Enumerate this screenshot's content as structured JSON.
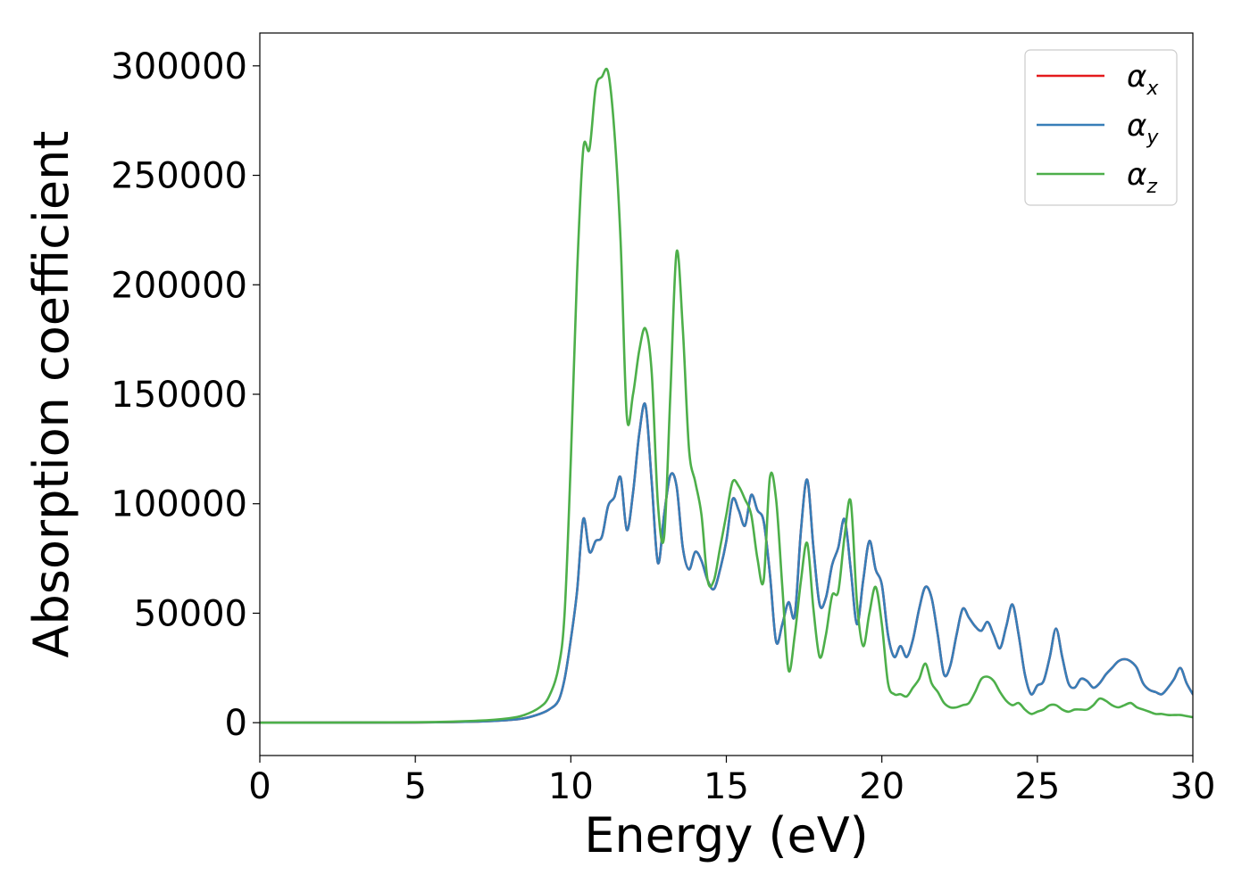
{
  "chart_data": {
    "type": "line",
    "title": "",
    "xlabel": "Energy (eV)",
    "ylabel": "Absorption coefficient",
    "xlim": [
      0,
      30
    ],
    "ylim": [
      -15000,
      315000
    ],
    "xticks": [
      "0",
      "5",
      "10",
      "15",
      "20",
      "25",
      "30"
    ],
    "yticks": [
      "0",
      "50000",
      "100000",
      "150000",
      "200000",
      "250000",
      "300000"
    ],
    "grid": false,
    "legend_position": "top-right",
    "series": [
      {
        "name": "α_x",
        "symbol": "α",
        "subscript": "x",
        "color": "#e41a1c",
        "x": [
          0,
          5,
          7,
          8,
          8.5,
          9,
          9.3,
          9.6,
          9.8,
          10,
          10.2,
          10.4,
          10.6,
          10.8,
          11,
          11.2,
          11.4,
          11.6,
          11.8,
          12,
          12.2,
          12.4,
          12.6,
          12.8,
          13,
          13.2,
          13.4,
          13.6,
          13.8,
          14,
          14.2,
          14.4,
          14.6,
          14.8,
          15,
          15.2,
          15.4,
          15.6,
          15.8,
          16,
          16.2,
          16.4,
          16.6,
          16.8,
          17,
          17.2,
          17.4,
          17.6,
          17.8,
          18,
          18.2,
          18.4,
          18.6,
          18.8,
          19,
          19.2,
          19.4,
          19.6,
          19.8,
          20,
          20.2,
          20.4,
          20.6,
          20.8,
          21,
          21.2,
          21.4,
          21.6,
          21.8,
          22,
          22.2,
          22.4,
          22.6,
          22.8,
          23,
          23.2,
          23.4,
          23.6,
          23.8,
          24,
          24.2,
          24.4,
          24.6,
          24.8,
          25,
          25.2,
          25.4,
          25.6,
          25.8,
          26,
          26.2,
          26.4,
          26.6,
          26.8,
          27,
          27.2,
          27.4,
          27.6,
          27.8,
          28,
          28.2,
          28.4,
          28.6,
          28.8,
          29,
          29.2,
          29.4,
          29.6,
          29.8,
          30
        ],
        "values": [
          0,
          100,
          500,
          1200,
          2000,
          4000,
          6000,
          10000,
          20000,
          38000,
          60000,
          93000,
          78000,
          83000,
          85000,
          99000,
          103000,
          112000,
          88000,
          105000,
          132000,
          145000,
          110000,
          73000,
          95000,
          113000,
          108000,
          80000,
          70000,
          78000,
          74000,
          65000,
          61000,
          70000,
          83000,
          102000,
          97000,
          90000,
          104000,
          97000,
          92000,
          68000,
          37000,
          45000,
          55000,
          49000,
          88000,
          111000,
          80000,
          54000,
          57000,
          72000,
          80000,
          93000,
          70000,
          45000,
          65000,
          83000,
          70000,
          63000,
          40000,
          30000,
          35000,
          30000,
          38000,
          52000,
          62000,
          57000,
          40000,
          22000,
          26000,
          40000,
          52000,
          48000,
          44000,
          42000,
          46000,
          40000,
          34000,
          44000,
          54000,
          40000,
          22000,
          13000,
          17000,
          19000,
          30000,
          43000,
          30000,
          18000,
          16000,
          20000,
          19000,
          16000,
          18000,
          22000,
          25000,
          28000,
          29000,
          28000,
          25000,
          18000,
          15000,
          14000,
          13000,
          16000,
          20000,
          25000,
          18000,
          13000
        ]
      },
      {
        "name": "α_y",
        "symbol": "α",
        "subscript": "y",
        "color": "#377eb8",
        "x": [
          0,
          5,
          7,
          8,
          8.5,
          9,
          9.3,
          9.6,
          9.8,
          10,
          10.2,
          10.4,
          10.6,
          10.8,
          11,
          11.2,
          11.4,
          11.6,
          11.8,
          12,
          12.2,
          12.4,
          12.6,
          12.8,
          13,
          13.2,
          13.4,
          13.6,
          13.8,
          14,
          14.2,
          14.4,
          14.6,
          14.8,
          15,
          15.2,
          15.4,
          15.6,
          15.8,
          16,
          16.2,
          16.4,
          16.6,
          16.8,
          17,
          17.2,
          17.4,
          17.6,
          17.8,
          18,
          18.2,
          18.4,
          18.6,
          18.8,
          19,
          19.2,
          19.4,
          19.6,
          19.8,
          20,
          20.2,
          20.4,
          20.6,
          20.8,
          21,
          21.2,
          21.4,
          21.6,
          21.8,
          22,
          22.2,
          22.4,
          22.6,
          22.8,
          23,
          23.2,
          23.4,
          23.6,
          23.8,
          24,
          24.2,
          24.4,
          24.6,
          24.8,
          25,
          25.2,
          25.4,
          25.6,
          25.8,
          26,
          26.2,
          26.4,
          26.6,
          26.8,
          27,
          27.2,
          27.4,
          27.6,
          27.8,
          28,
          28.2,
          28.4,
          28.6,
          28.8,
          29,
          29.2,
          29.4,
          29.6,
          29.8,
          30
        ],
        "values": [
          0,
          100,
          500,
          1200,
          2000,
          4000,
          6000,
          10000,
          20000,
          38000,
          60000,
          93000,
          78000,
          83000,
          85000,
          99000,
          103000,
          112000,
          88000,
          105000,
          132000,
          145000,
          110000,
          73000,
          95000,
          113000,
          108000,
          80000,
          70000,
          78000,
          74000,
          65000,
          61000,
          70000,
          83000,
          102000,
          97000,
          90000,
          104000,
          97000,
          92000,
          68000,
          37000,
          45000,
          55000,
          49000,
          88000,
          111000,
          80000,
          54000,
          57000,
          72000,
          80000,
          93000,
          70000,
          45000,
          65000,
          83000,
          70000,
          63000,
          40000,
          30000,
          35000,
          30000,
          38000,
          52000,
          62000,
          57000,
          40000,
          22000,
          26000,
          40000,
          52000,
          48000,
          44000,
          42000,
          46000,
          40000,
          34000,
          44000,
          54000,
          40000,
          22000,
          13000,
          17000,
          19000,
          30000,
          43000,
          30000,
          18000,
          16000,
          20000,
          19000,
          16000,
          18000,
          22000,
          25000,
          28000,
          29000,
          28000,
          25000,
          18000,
          15000,
          14000,
          13000,
          16000,
          20000,
          25000,
          18000,
          13000
        ]
      },
      {
        "name": "α_z",
        "symbol": "α",
        "subscript": "z",
        "color": "#4daf4a",
        "x": [
          0,
          5,
          7,
          8,
          8.5,
          9,
          9.3,
          9.6,
          9.8,
          10,
          10.2,
          10.4,
          10.6,
          10.8,
          11,
          11.2,
          11.4,
          11.6,
          11.8,
          12,
          12.2,
          12.4,
          12.6,
          12.8,
          13,
          13.2,
          13.4,
          13.6,
          13.8,
          14,
          14.2,
          14.4,
          14.6,
          14.8,
          15,
          15.2,
          15.4,
          15.6,
          15.8,
          16,
          16.2,
          16.4,
          16.6,
          16.8,
          17,
          17.2,
          17.4,
          17.6,
          17.8,
          18,
          18.2,
          18.4,
          18.6,
          18.8,
          19,
          19.2,
          19.4,
          19.6,
          19.8,
          20,
          20.2,
          20.4,
          20.6,
          20.8,
          21,
          21.2,
          21.4,
          21.6,
          21.8,
          22,
          22.2,
          22.4,
          22.6,
          22.8,
          23,
          23.2,
          23.4,
          23.6,
          23.8,
          24,
          24.2,
          24.4,
          24.6,
          24.8,
          25,
          25.2,
          25.4,
          25.6,
          25.8,
          26,
          26.2,
          26.4,
          26.6,
          26.8,
          27,
          27.2,
          27.4,
          27.6,
          27.8,
          28,
          28.2,
          28.4,
          28.6,
          28.8,
          29,
          29.2,
          29.4,
          29.6,
          29.8,
          30
        ],
        "values": [
          0,
          200,
          900,
          2000,
          3500,
          7000,
          12000,
          25000,
          50000,
          120000,
          205000,
          262000,
          262000,
          290000,
          295000,
          297000,
          270000,
          220000,
          140000,
          150000,
          170000,
          180000,
          160000,
          100000,
          85000,
          150000,
          215000,
          180000,
          125000,
          110000,
          95000,
          65000,
          65000,
          80000,
          95000,
          110000,
          108000,
          102000,
          95000,
          75000,
          65000,
          112000,
          102000,
          62000,
          24000,
          40000,
          65000,
          82000,
          52000,
          30000,
          40000,
          58000,
          60000,
          85000,
          101000,
          55000,
          35000,
          50000,
          62000,
          45000,
          18000,
          13000,
          13000,
          12000,
          16000,
          20000,
          27000,
          18000,
          14000,
          9000,
          7000,
          7000,
          8000,
          9000,
          14000,
          20000,
          21000,
          19000,
          14000,
          10000,
          8000,
          9000,
          6000,
          4000,
          5000,
          6000,
          8000,
          8000,
          6000,
          5000,
          6000,
          6000,
          6000,
          8000,
          11000,
          10000,
          8000,
          7000,
          8000,
          9000,
          7000,
          6000,
          5000,
          4000,
          4000,
          3500,
          3500,
          3500,
          3000,
          2500
        ]
      }
    ]
  }
}
